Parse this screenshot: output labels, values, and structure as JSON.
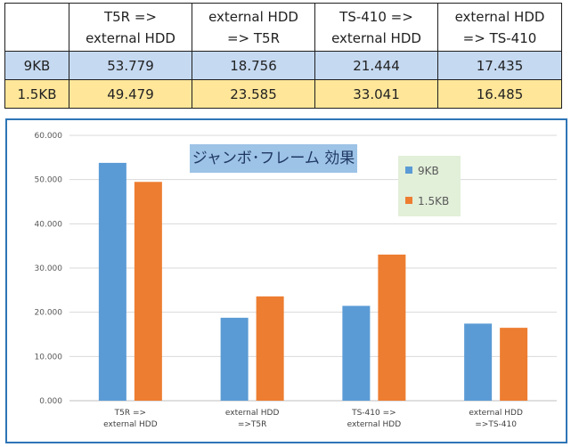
{
  "table": {
    "headers": [
      "",
      "T5R =>\nexternal HDD",
      "external HDD\n=> T5R",
      "TS-410 =>\nexternal HDD",
      "external HDD\n=> TS-410"
    ],
    "rows": [
      {
        "label": "9KB",
        "values": [
          "53.779",
          "18.756",
          "21.444",
          "17.435"
        ]
      },
      {
        "label": "1.5KB",
        "values": [
          "49.479",
          "23.585",
          "33.041",
          "16.485"
        ]
      }
    ]
  },
  "chart_data": {
    "type": "bar",
    "title": "ジャンボ･フレーム 効果",
    "categories": [
      "T5R =>\nexternal HDD",
      "external HDD\n=>T5R",
      "TS-410 =>\nexternal HDD",
      "external HDD\n=>TS-410"
    ],
    "series": [
      {
        "name": "9KB",
        "color": "#5b9bd5",
        "values": [
          53.779,
          18.756,
          21.444,
          17.435
        ]
      },
      {
        "name": "1.5KB",
        "color": "#ed7d31",
        "values": [
          49.479,
          23.585,
          33.041,
          16.485
        ]
      }
    ],
    "ylim": [
      0,
      60
    ],
    "yticks": [
      "0.000",
      "10.000",
      "20.000",
      "30.000",
      "40.000",
      "50.000",
      "60.000"
    ],
    "grid": true,
    "legend_position": "top-right"
  }
}
